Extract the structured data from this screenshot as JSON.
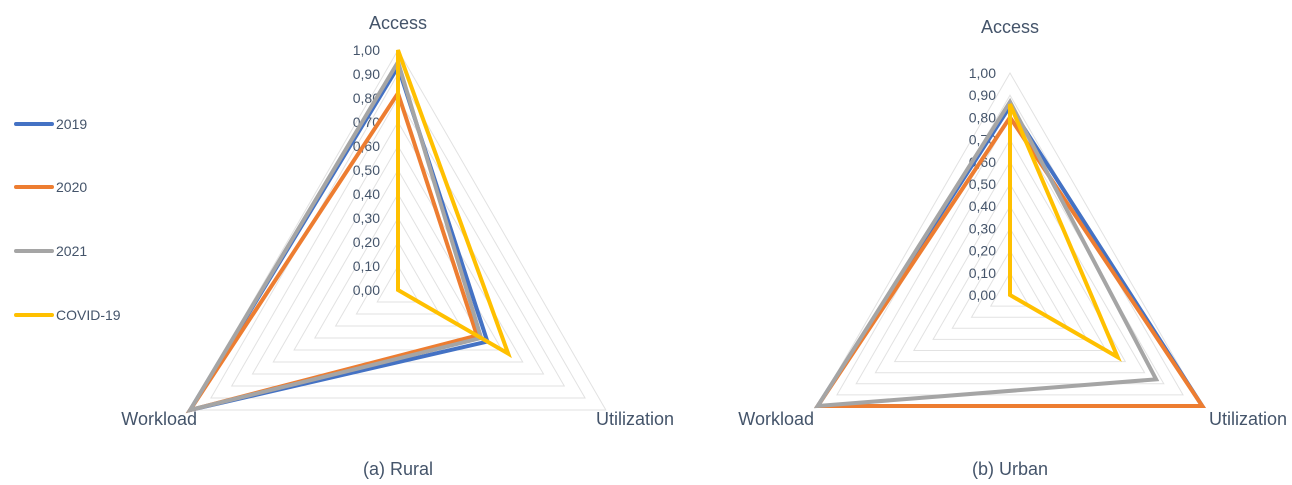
{
  "legend": {
    "items": [
      {
        "label": "2019",
        "color": "#4472c4"
      },
      {
        "label": "2020",
        "color": "#ed7d31"
      },
      {
        "label": "2021",
        "color": "#a5a5a5"
      },
      {
        "label": "COVID-19",
        "color": "#ffc000"
      }
    ]
  },
  "chart_data": [
    {
      "type": "radar",
      "caption": "(a) Rural",
      "axes": [
        "Access",
        "Utilization",
        "Workload"
      ],
      "ticks": [
        "0,00",
        "0,10",
        "0,20",
        "0,30",
        "0,40",
        "0,50",
        "0,60",
        "0,70",
        "0,80",
        "0,90",
        "1,00"
      ],
      "range": [
        0,
        1
      ],
      "series": [
        {
          "name": "2019",
          "color": "#4472c4",
          "values": [
            0.93,
            0.43,
            1.0
          ]
        },
        {
          "name": "2020",
          "color": "#ed7d31",
          "values": [
            0.82,
            0.38,
            1.0
          ]
        },
        {
          "name": "2021",
          "color": "#a5a5a5",
          "values": [
            0.95,
            0.4,
            1.0
          ]
        },
        {
          "name": "COVID-19",
          "color": "#ffc000",
          "values": [
            1.0,
            0.53,
            0.0
          ]
        }
      ]
    },
    {
      "type": "radar",
      "caption": "(b) Urban",
      "axes": [
        "Access",
        "Utilization",
        "Workload"
      ],
      "ticks": [
        "0,00",
        "0,10",
        "0,20",
        "0,30",
        "0,40",
        "0,50",
        "0,60",
        "0,70",
        "0,80",
        "0,90",
        "1,00"
      ],
      "range": [
        0,
        1
      ],
      "series": [
        {
          "name": "2019",
          "color": "#4472c4",
          "values": [
            0.85,
            1.0,
            1.0
          ]
        },
        {
          "name": "2020",
          "color": "#ed7d31",
          "values": [
            0.8,
            1.0,
            1.0
          ]
        },
        {
          "name": "2021",
          "color": "#a5a5a5",
          "values": [
            0.87,
            0.76,
            1.0
          ]
        },
        {
          "name": "COVID-19",
          "color": "#ffc000",
          "values": [
            0.86,
            0.56,
            0.0
          ]
        }
      ]
    }
  ]
}
